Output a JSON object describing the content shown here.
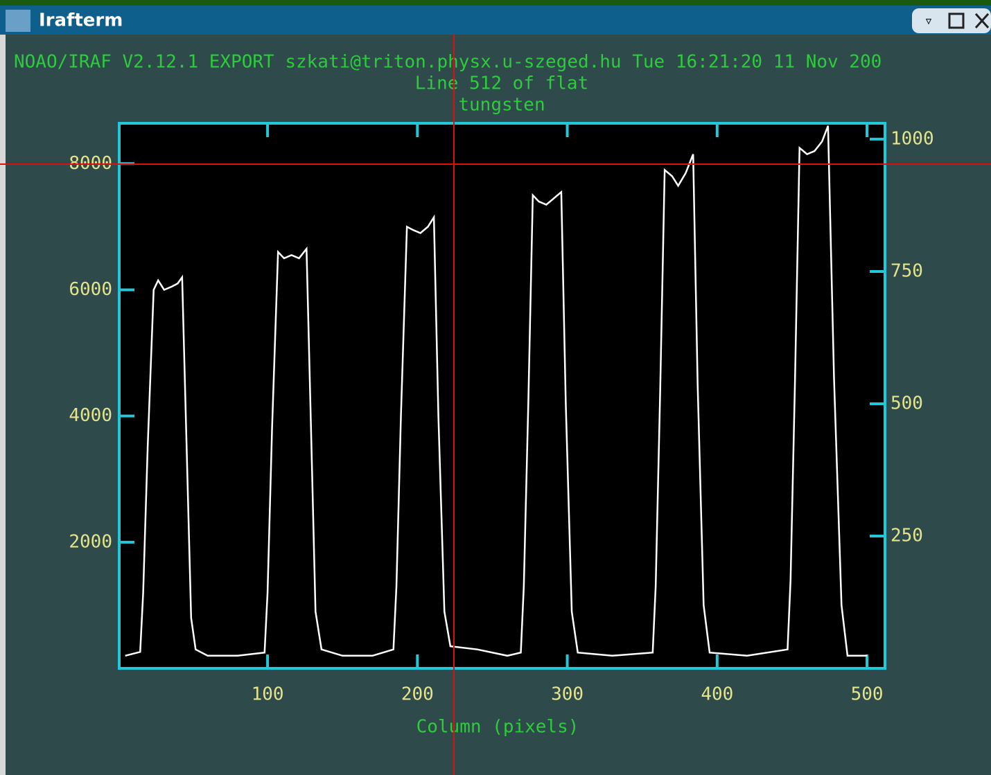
{
  "window": {
    "title": "Irafterm"
  },
  "chart_data": {
    "type": "line",
    "title": "NOAO/IRAF V2.12.1 EXPORT szkati@triton.physx.u-szeged.hu Tue 16:21:20 11 Nov 200",
    "subtitle": "Line 512 of flat",
    "annotation": "tungsten",
    "xlabel": "Column (pixels)",
    "x": [
      5,
      15,
      17,
      20,
      24,
      27,
      31,
      36,
      40,
      43,
      46,
      49,
      52,
      60,
      80,
      98,
      100,
      103,
      107,
      111,
      116,
      121,
      126,
      129,
      132,
      136,
      150,
      170,
      184,
      186,
      189,
      193,
      197,
      202,
      207,
      211,
      214,
      218,
      222,
      240,
      260,
      269,
      271,
      274,
      277,
      281,
      286,
      291,
      296,
      299,
      303,
      307,
      330,
      357,
      359,
      362,
      365,
      370,
      374,
      379,
      384,
      387,
      391,
      395,
      420,
      447,
      449,
      452,
      455,
      460,
      465,
      470,
      474,
      478,
      483,
      487,
      500
    ],
    "series": [
      {
        "color": "#ffffff",
        "values": [
          200,
          260,
          1200,
          3500,
          6000,
          6150,
          6000,
          6050,
          6100,
          6200,
          3500,
          800,
          300,
          200,
          200,
          250,
          1200,
          3800,
          6600,
          6500,
          6550,
          6500,
          6650,
          3800,
          900,
          300,
          200,
          200,
          300,
          1300,
          4000,
          7000,
          6950,
          6900,
          7000,
          7150,
          4000,
          900,
          350,
          300,
          200,
          250,
          1300,
          4200,
          7500,
          7400,
          7350,
          7450,
          7550,
          4200,
          900,
          250,
          200,
          250,
          1300,
          4400,
          7900,
          7800,
          7650,
          7850,
          8150,
          4500,
          1000,
          250,
          200,
          300,
          1400,
          4600,
          8250,
          8150,
          8200,
          8350,
          8600,
          4600,
          1000,
          200,
          200
        ]
      }
    ],
    "xlim": [
      1,
      512
    ],
    "xticks": [
      100,
      200,
      300,
      400,
      500
    ],
    "ylim": [
      0,
      8640
    ],
    "yticks": [
      2000,
      4000,
      6000,
      8000
    ],
    "y2lim": [
      0,
      1030
    ],
    "y2ticks": [
      250,
      500,
      750,
      1000
    ]
  }
}
